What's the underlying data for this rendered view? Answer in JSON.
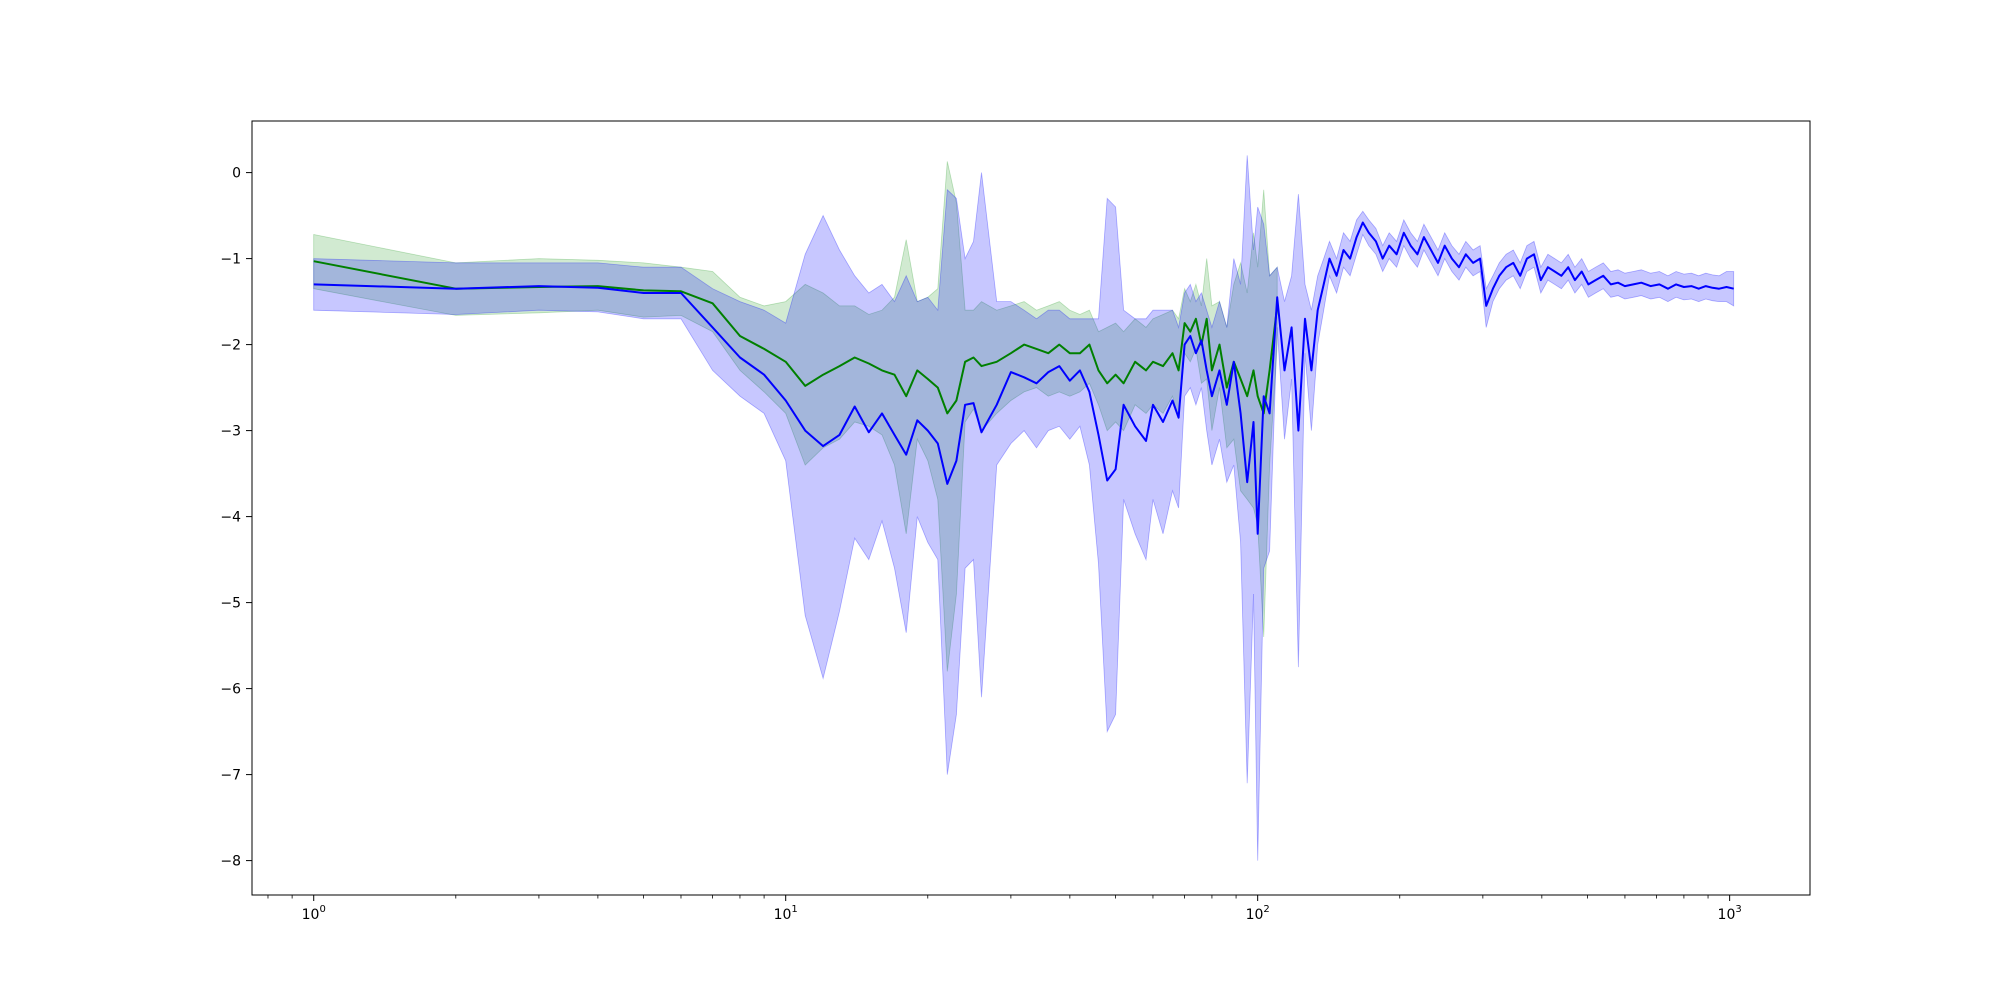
{
  "chart_data": {
    "type": "line",
    "x_scale": "log",
    "xlim": [
      0.74,
      1480
    ],
    "ylim": [
      -8.4,
      0.6
    ],
    "grid": false,
    "legend": "none",
    "x_ticks": [
      {
        "value": 1,
        "base": "10",
        "exp": "0"
      },
      {
        "value": 10,
        "base": "10",
        "exp": "1"
      },
      {
        "value": 100,
        "base": "10",
        "exp": "2"
      },
      {
        "value": 1000,
        "base": "10",
        "exp": "3"
      }
    ],
    "y_ticks": [
      {
        "value": 0,
        "label": "0"
      },
      {
        "value": -1,
        "label": "−1"
      },
      {
        "value": -2,
        "label": "−2"
      },
      {
        "value": -3,
        "label": "−3"
      },
      {
        "value": -4,
        "label": "−4"
      },
      {
        "value": -5,
        "label": "−5"
      },
      {
        "value": -6,
        "label": "−6"
      },
      {
        "value": -7,
        "label": "−7"
      },
      {
        "value": -8,
        "label": "−8"
      }
    ],
    "series": [
      {
        "color": "#008000",
        "band_color": "#2ca02c",
        "points": [
          [
            1,
            -1.03,
            -0.72,
            -1.35
          ],
          [
            2,
            -1.35,
            -1.05,
            -1.66
          ],
          [
            3,
            -1.33,
            -1.0,
            -1.63
          ],
          [
            4,
            -1.32,
            -1.02,
            -1.6
          ],
          [
            5,
            -1.37,
            -1.05,
            -1.68
          ],
          [
            6,
            -1.38,
            -1.1,
            -1.66
          ],
          [
            7,
            -1.52,
            -1.15,
            -1.85
          ],
          [
            8,
            -1.9,
            -1.45,
            -2.3
          ],
          [
            9,
            -2.05,
            -1.55,
            -2.55
          ],
          [
            10,
            -2.2,
            -1.5,
            -2.8
          ],
          [
            11,
            -2.48,
            -1.3,
            -3.4
          ],
          [
            12,
            -2.35,
            -1.4,
            -3.2
          ],
          [
            13,
            -2.25,
            -1.55,
            -3.1
          ],
          [
            14,
            -2.15,
            -1.55,
            -2.9
          ],
          [
            15,
            -2.22,
            -1.65,
            -2.95
          ],
          [
            16,
            -2.3,
            -1.6,
            -3.05
          ],
          [
            17,
            -2.35,
            -1.45,
            -3.4
          ],
          [
            18,
            -2.6,
            -0.78,
            -4.2
          ],
          [
            19,
            -2.3,
            -1.5,
            -3.1
          ],
          [
            20,
            -2.4,
            -1.45,
            -3.35
          ],
          [
            21,
            -2.5,
            -1.35,
            -3.8
          ],
          [
            22,
            -2.8,
            0.13,
            -5.8
          ],
          [
            23,
            -2.65,
            -0.35,
            -4.9
          ],
          [
            24,
            -2.2,
            -1.6,
            -2.9
          ],
          [
            25,
            -2.15,
            -1.6,
            -2.75
          ],
          [
            26,
            -2.25,
            -1.5,
            -3.0
          ],
          [
            28,
            -2.2,
            -1.6,
            -2.8
          ],
          [
            30,
            -2.1,
            -1.55,
            -2.65
          ],
          [
            32,
            -2.0,
            -1.5,
            -2.55
          ],
          [
            34,
            -2.05,
            -1.6,
            -2.5
          ],
          [
            36,
            -2.1,
            -1.55,
            -2.6
          ],
          [
            38,
            -2.0,
            -1.5,
            -2.55
          ],
          [
            40,
            -2.1,
            -1.6,
            -2.6
          ],
          [
            42,
            -2.1,
            -1.65,
            -2.55
          ],
          [
            44,
            -2.0,
            -1.6,
            -2.45
          ],
          [
            46,
            -2.3,
            -1.85,
            -2.7
          ],
          [
            48,
            -2.45,
            -1.8,
            -3.0
          ],
          [
            50,
            -2.35,
            -1.75,
            -2.9
          ],
          [
            52,
            -2.45,
            -1.85,
            -3.0
          ],
          [
            55,
            -2.2,
            -1.7,
            -2.7
          ],
          [
            58,
            -2.3,
            -1.8,
            -2.8
          ],
          [
            60,
            -2.2,
            -1.7,
            -2.7
          ],
          [
            63,
            -2.25,
            -1.65,
            -2.8
          ],
          [
            66,
            -2.1,
            -1.6,
            -2.6
          ],
          [
            68,
            -2.3,
            -1.7,
            -2.85
          ],
          [
            70,
            -1.75,
            -1.35,
            -2.1
          ],
          [
            72,
            -1.85,
            -1.5,
            -2.2
          ],
          [
            74,
            -1.7,
            -1.3,
            -2.05
          ],
          [
            76,
            -2.0,
            -1.55,
            -2.45
          ],
          [
            78,
            -1.7,
            -1.0,
            -2.4
          ],
          [
            80,
            -2.3,
            -1.55,
            -3.0
          ],
          [
            83,
            -2.0,
            -1.5,
            -2.5
          ],
          [
            86,
            -2.5,
            -1.8,
            -3.2
          ],
          [
            89,
            -2.2,
            -1.3,
            -3.1
          ],
          [
            92,
            -2.4,
            -1.05,
            -3.7
          ],
          [
            95,
            -2.6,
            -1.4,
            -3.8
          ],
          [
            98,
            -2.3,
            -0.7,
            -3.9
          ],
          [
            100,
            -2.6,
            -1.1,
            -4.1
          ],
          [
            103,
            -2.8,
            -0.2,
            -5.4
          ],
          [
            106,
            -2.3,
            -1.2,
            -3.4
          ],
          [
            110,
            -1.55,
            -1.1,
            -2.0
          ]
        ]
      },
      {
        "color": "#0000ff",
        "band_color": "#0000ff",
        "points": [
          [
            1,
            -1.3,
            -1.0,
            -1.6
          ],
          [
            2,
            -1.35,
            -1.05,
            -1.65
          ],
          [
            3,
            -1.32,
            -1.05,
            -1.6
          ],
          [
            4,
            -1.34,
            -1.05,
            -1.62
          ],
          [
            5,
            -1.4,
            -1.1,
            -1.7
          ],
          [
            6,
            -1.4,
            -1.1,
            -1.7
          ],
          [
            7,
            -1.8,
            -1.35,
            -2.3
          ],
          [
            8,
            -2.15,
            -1.5,
            -2.6
          ],
          [
            9,
            -2.35,
            -1.6,
            -2.8
          ],
          [
            10,
            -2.65,
            -1.75,
            -3.35
          ],
          [
            11,
            -3.0,
            -0.95,
            -5.15
          ],
          [
            12,
            -3.18,
            -0.5,
            -5.88
          ],
          [
            13,
            -3.05,
            -0.9,
            -5.1
          ],
          [
            14,
            -2.72,
            -1.2,
            -4.25
          ],
          [
            15,
            -3.02,
            -1.4,
            -4.5
          ],
          [
            16,
            -2.8,
            -1.3,
            -4.05
          ],
          [
            17,
            -3.05,
            -1.5,
            -4.6
          ],
          [
            18,
            -3.28,
            -1.2,
            -5.35
          ],
          [
            19,
            -2.88,
            -1.5,
            -4.0
          ],
          [
            20,
            -3.0,
            -1.45,
            -4.3
          ],
          [
            21,
            -3.15,
            -1.6,
            -4.5
          ],
          [
            22,
            -3.62,
            -0.2,
            -7.0
          ],
          [
            23,
            -3.35,
            -0.3,
            -6.3
          ],
          [
            24,
            -2.7,
            -1.0,
            -4.6
          ],
          [
            25,
            -2.68,
            -0.8,
            -4.5
          ],
          [
            26,
            -3.02,
            0.0,
            -6.1
          ],
          [
            28,
            -2.7,
            -1.5,
            -3.4
          ],
          [
            30,
            -2.32,
            -1.5,
            -3.15
          ],
          [
            32,
            -2.38,
            -1.6,
            -3.0
          ],
          [
            34,
            -2.45,
            -1.7,
            -3.2
          ],
          [
            36,
            -2.32,
            -1.6,
            -3.0
          ],
          [
            38,
            -2.25,
            -1.6,
            -2.95
          ],
          [
            40,
            -2.42,
            -1.7,
            -3.1
          ],
          [
            42,
            -2.3,
            -1.7,
            -2.95
          ],
          [
            44,
            -2.55,
            -1.7,
            -3.4
          ],
          [
            46,
            -3.05,
            -1.7,
            -4.55
          ],
          [
            48,
            -3.58,
            -0.3,
            -6.5
          ],
          [
            50,
            -3.45,
            -0.4,
            -6.3
          ],
          [
            52,
            -2.7,
            -1.6,
            -3.8
          ],
          [
            55,
            -2.95,
            -1.7,
            -4.2
          ],
          [
            58,
            -3.12,
            -1.7,
            -4.5
          ],
          [
            60,
            -2.7,
            -1.6,
            -3.8
          ],
          [
            63,
            -2.9,
            -1.6,
            -4.2
          ],
          [
            66,
            -2.65,
            -1.6,
            -3.7
          ],
          [
            68,
            -2.85,
            -1.8,
            -3.9
          ],
          [
            70,
            -2.0,
            -1.4,
            -2.6
          ],
          [
            72,
            -1.9,
            -1.3,
            -2.5
          ],
          [
            74,
            -2.1,
            -1.5,
            -2.7
          ],
          [
            76,
            -1.95,
            -1.4,
            -2.5
          ],
          [
            78,
            -2.3,
            -1.6,
            -3.0
          ],
          [
            80,
            -2.6,
            -1.8,
            -3.4
          ],
          [
            83,
            -2.3,
            -1.5,
            -3.1
          ],
          [
            86,
            -2.7,
            -1.8,
            -3.6
          ],
          [
            89,
            -2.2,
            -1.0,
            -3.4
          ],
          [
            92,
            -2.8,
            -1.3,
            -4.3
          ],
          [
            95,
            -3.6,
            0.2,
            -7.1
          ],
          [
            98,
            -2.9,
            -0.9,
            -4.9
          ],
          [
            100,
            -4.2,
            -0.4,
            -8.0
          ],
          [
            103,
            -2.6,
            -0.6,
            -4.6
          ],
          [
            106,
            -2.8,
            -1.2,
            -4.4
          ],
          [
            110,
            -1.45,
            -1.1,
            -1.8
          ],
          [
            114,
            -2.3,
            -1.5,
            -3.1
          ],
          [
            118,
            -1.8,
            -1.2,
            -2.4
          ],
          [
            122,
            -3.0,
            -0.25,
            -5.75
          ],
          [
            126,
            -1.7,
            -1.3,
            -2.1
          ],
          [
            130,
            -2.3,
            -1.6,
            -3.0
          ],
          [
            134,
            -1.6,
            -1.2,
            -2.0
          ],
          [
            138,
            -1.3,
            -1.0,
            -1.6
          ],
          [
            142,
            -1.0,
            -0.8,
            -1.2
          ],
          [
            147,
            -1.2,
            -1.0,
            -1.4
          ],
          [
            152,
            -0.9,
            -0.7,
            -1.1
          ],
          [
            157,
            -1.0,
            -0.8,
            -1.2
          ],
          [
            162,
            -0.75,
            -0.55,
            -0.95
          ],
          [
            167,
            -0.58,
            -0.45,
            -0.72
          ],
          [
            172,
            -0.7,
            -0.55,
            -0.85
          ],
          [
            178,
            -0.8,
            -0.65,
            -0.95
          ],
          [
            184,
            -1.0,
            -0.85,
            -1.15
          ],
          [
            190,
            -0.85,
            -0.7,
            -1.0
          ],
          [
            197,
            -0.95,
            -0.8,
            -1.1
          ],
          [
            204,
            -0.7,
            -0.55,
            -0.85
          ],
          [
            211,
            -0.85,
            -0.7,
            -1.0
          ],
          [
            218,
            -0.95,
            -0.8,
            -1.1
          ],
          [
            225,
            -0.75,
            -0.6,
            -0.9
          ],
          [
            233,
            -0.9,
            -0.75,
            -1.05
          ],
          [
            241,
            -1.05,
            -0.9,
            -1.2
          ],
          [
            249,
            -0.85,
            -0.7,
            -1.0
          ],
          [
            258,
            -1.0,
            -0.85,
            -1.15
          ],
          [
            267,
            -1.1,
            -0.95,
            -1.25
          ],
          [
            276,
            -0.95,
            -0.8,
            -1.1
          ],
          [
            286,
            -1.05,
            -0.9,
            -1.2
          ],
          [
            296,
            -1.0,
            -0.85,
            -1.15
          ],
          [
            305,
            -1.55,
            -1.35,
            -1.8
          ],
          [
            315,
            -1.35,
            -1.2,
            -1.5
          ],
          [
            325,
            -1.2,
            -1.05,
            -1.35
          ],
          [
            336,
            -1.1,
            -0.95,
            -1.25
          ],
          [
            348,
            -1.05,
            -0.9,
            -1.2
          ],
          [
            360,
            -1.2,
            -1.05,
            -1.35
          ],
          [
            372,
            -1.0,
            -0.85,
            -1.15
          ],
          [
            385,
            -0.95,
            -0.8,
            -1.1
          ],
          [
            398,
            -1.25,
            -1.1,
            -1.4
          ],
          [
            412,
            -1.1,
            -0.95,
            -1.25
          ],
          [
            426,
            -1.15,
            -1.0,
            -1.3
          ],
          [
            440,
            -1.2,
            -1.05,
            -1.35
          ],
          [
            455,
            -1.1,
            -0.95,
            -1.25
          ],
          [
            470,
            -1.25,
            -1.1,
            -1.4
          ],
          [
            486,
            -1.15,
            -1.0,
            -1.3
          ],
          [
            502,
            -1.3,
            -1.15,
            -1.45
          ],
          [
            520,
            -1.25,
            -1.1,
            -1.4
          ],
          [
            540,
            -1.2,
            -1.05,
            -1.35
          ],
          [
            560,
            -1.3,
            -1.15,
            -1.45
          ],
          [
            580,
            -1.28,
            -1.13,
            -1.43
          ],
          [
            600,
            -1.32,
            -1.17,
            -1.47
          ],
          [
            625,
            -1.3,
            -1.15,
            -1.45
          ],
          [
            650,
            -1.28,
            -1.13,
            -1.43
          ],
          [
            680,
            -1.32,
            -1.17,
            -1.47
          ],
          [
            710,
            -1.3,
            -1.15,
            -1.45
          ],
          [
            740,
            -1.35,
            -1.2,
            -1.5
          ],
          [
            770,
            -1.3,
            -1.15,
            -1.45
          ],
          [
            800,
            -1.33,
            -1.18,
            -1.48
          ],
          [
            830,
            -1.32,
            -1.17,
            -1.47
          ],
          [
            860,
            -1.35,
            -1.2,
            -1.5
          ],
          [
            890,
            -1.32,
            -1.17,
            -1.47
          ],
          [
            920,
            -1.34,
            -1.19,
            -1.49
          ],
          [
            950,
            -1.35,
            -1.2,
            -1.5
          ],
          [
            985,
            -1.33,
            -1.15,
            -1.5
          ],
          [
            1020,
            -1.35,
            -1.15,
            -1.55
          ]
        ]
      }
    ]
  }
}
